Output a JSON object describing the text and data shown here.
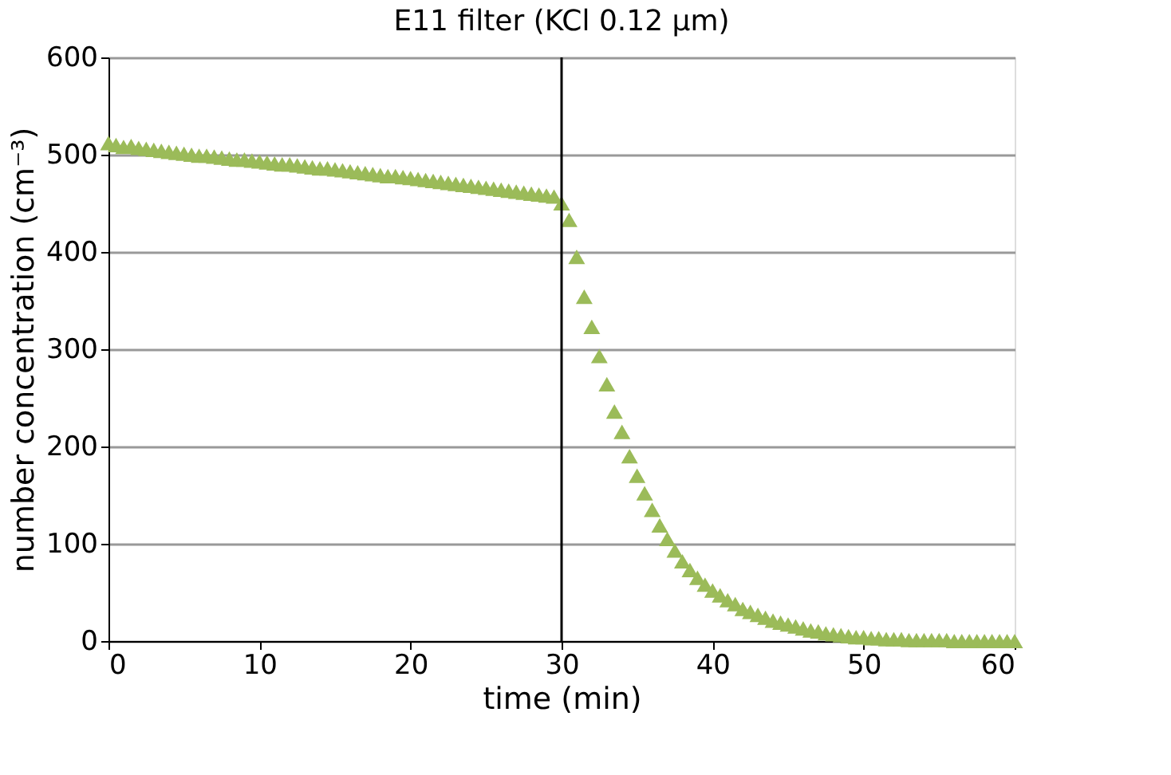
{
  "chart_data": {
    "type": "scatter",
    "title": "E11 filter (KCl 0.12 µm)",
    "xlabel": "time (min)",
    "ylabel": "number concentration (cm⁻³)",
    "x": [
      0,
      0.5,
      1,
      1.5,
      2,
      2.5,
      3,
      3.5,
      4,
      4.5,
      5,
      5.5,
      6,
      6.5,
      7,
      7.5,
      8,
      8.5,
      9,
      9.5,
      10,
      10.5,
      11,
      11.5,
      12,
      12.5,
      13,
      13.5,
      14,
      14.5,
      15,
      15.5,
      16,
      16.5,
      17,
      17.5,
      18,
      18.5,
      19,
      19.5,
      20,
      20.5,
      21,
      21.5,
      22,
      22.5,
      23,
      23.5,
      24,
      24.5,
      25,
      25.5,
      26,
      26.5,
      27,
      27.5,
      28,
      28.5,
      29,
      29.5,
      30,
      30.5,
      31,
      31.5,
      32,
      32.5,
      33,
      33.5,
      34,
      34.5,
      35,
      35.5,
      36,
      36.5,
      37,
      37.5,
      38,
      38.5,
      39,
      39.5,
      40,
      40.5,
      41,
      41.5,
      42,
      42.5,
      43,
      43.5,
      44,
      44.5,
      45,
      45.5,
      46,
      46.5,
      47,
      47.5,
      48,
      48.5,
      49,
      49.5,
      50,
      50.5,
      51,
      51.5,
      52,
      52.5,
      53,
      53.5,
      54,
      54.5,
      55,
      55.5,
      56,
      56.5,
      57,
      57.5,
      58,
      58.5,
      59,
      59.5,
      60
    ],
    "series": [
      {
        "color": "#9bbb59",
        "values": [
          512,
          510,
          508,
          509,
          507,
          506,
          505,
          504,
          503,
          502,
          501,
          500,
          499,
          499,
          498,
          497,
          496,
          495,
          495,
          494,
          493,
          492,
          491,
          490,
          490,
          489,
          488,
          487,
          486,
          486,
          485,
          484,
          483,
          482,
          481,
          480,
          479,
          478,
          478,
          477,
          476,
          475,
          474,
          473,
          472,
          471,
          470,
          469,
          468,
          467,
          466,
          465,
          464,
          463,
          462,
          461,
          460,
          459,
          458,
          457,
          450,
          433,
          395,
          354,
          323,
          293,
          264,
          236,
          215,
          190,
          170,
          152,
          135,
          119,
          105,
          93,
          82,
          73,
          65,
          58,
          52,
          47,
          42,
          38,
          33,
          30,
          27,
          24,
          21,
          19,
          17,
          15,
          13,
          11,
          10,
          8,
          7,
          6,
          5,
          4,
          4,
          3,
          3,
          2,
          2,
          2,
          1,
          1,
          1,
          1,
          1,
          1,
          0,
          0,
          0,
          0,
          0,
          0,
          0,
          0,
          0
        ]
      }
    ],
    "xlim": [
      0,
      60
    ],
    "xticks": [
      0,
      10,
      20,
      30,
      40,
      50,
      60
    ],
    "ylim": [
      0,
      600
    ],
    "yticks": [
      0,
      100,
      200,
      300,
      400,
      500,
      600
    ],
    "ref_lines": [
      {
        "axis": "x",
        "value": 30,
        "color": "#000000"
      }
    ],
    "grid": "y",
    "legend": false,
    "marker": "triangle"
  }
}
